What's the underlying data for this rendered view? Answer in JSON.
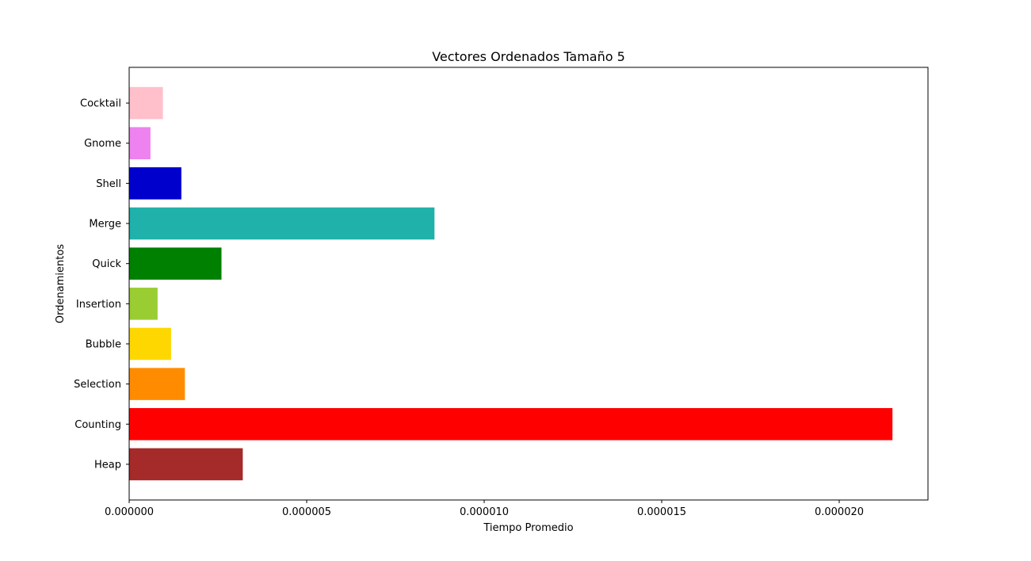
{
  "chart_data": {
    "type": "bar",
    "orientation": "horizontal",
    "title": "Vectores Ordenados Tamaño 5",
    "xlabel": "Tiempo Promedio",
    "ylabel": "Ordenamientos",
    "xlim": [
      0,
      2.25e-05
    ],
    "xticks": [
      0,
      5e-06,
      1e-05,
      1.5e-05,
      2e-05
    ],
    "xtick_labels": [
      "0.000000",
      "0.000005",
      "0.000010",
      "0.000015",
      "0.000020"
    ],
    "grid": false,
    "categories": [
      "Heap",
      "Counting",
      "Selection",
      "Bubble",
      "Insertion",
      "Quick",
      "Merge",
      "Shell",
      "Gnome",
      "Cocktail"
    ],
    "values": [
      3.2e-06,
      2.15e-05,
      1.57e-06,
      1.18e-06,
      8e-07,
      2.6e-06,
      8.6e-06,
      1.47e-06,
      6e-07,
      9.5e-07
    ],
    "colors": [
      "#a52a2a",
      "#ff0000",
      "#ff8c00",
      "#ffd700",
      "#9acd32",
      "#008000",
      "#20b2aa",
      "#0000cd",
      "#ee82ee",
      "#ffc0cb"
    ]
  }
}
